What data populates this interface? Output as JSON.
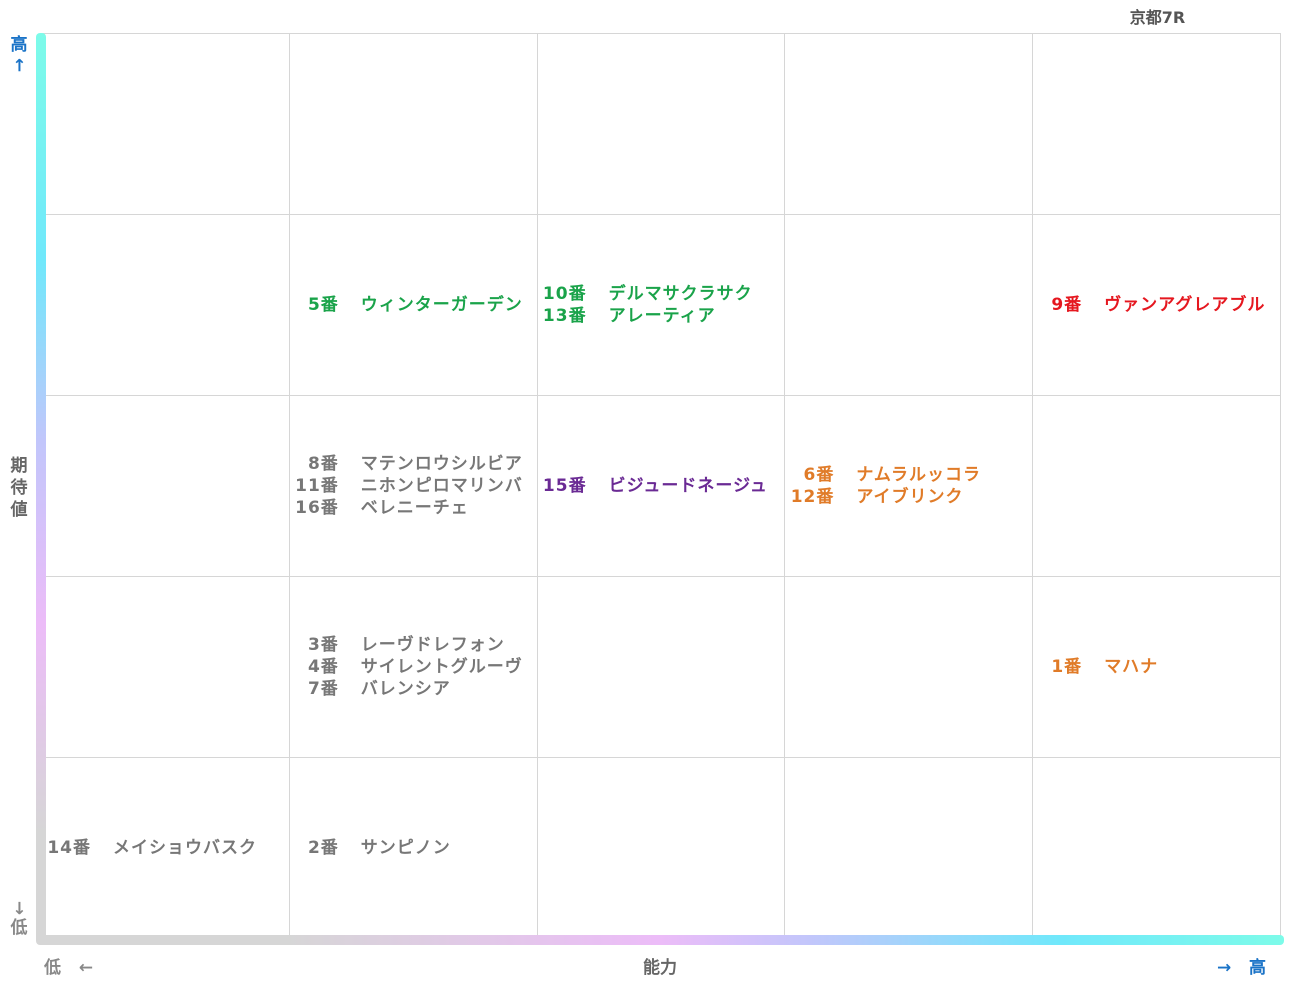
{
  "title": "京都7R",
  "axes": {
    "y_label": "期待値",
    "y_high": "高",
    "y_high_arrow": "←",
    "y_low": "低",
    "y_low_arrow": "→",
    "x_label": "能力",
    "x_low": "低",
    "x_low_arrow": "←",
    "x_high": "高",
    "x_high_arrow": "→"
  },
  "colors": {
    "gray": "#777777",
    "green": "#1aa34a",
    "purple": "#6a2a94",
    "orange": "#e07b28",
    "red": "#e5171f",
    "grid": "#d6d6d6"
  },
  "chart_data": {
    "type": "scatter",
    "x_label": "能力",
    "y_label": "期待値",
    "x_levels": 5,
    "y_levels": 5,
    "horses": [
      {
        "num": "5番",
        "name": "ウィンターガーデン",
        "x": 2,
        "y": 4,
        "color": "green"
      },
      {
        "num": "10番",
        "name": "デルマサクラサク",
        "x": 3,
        "y": 4,
        "color": "green"
      },
      {
        "num": "13番",
        "name": "アレーティア",
        "x": 3,
        "y": 4,
        "color": "green"
      },
      {
        "num": "9番",
        "name": "ヴァンアグレアブル",
        "x": 5,
        "y": 4,
        "color": "red"
      },
      {
        "num": "8番",
        "name": "マテンロウシルビア",
        "x": 2,
        "y": 3,
        "color": "gray"
      },
      {
        "num": "11番",
        "name": "ニホンピロマリンバ",
        "x": 2,
        "y": 3,
        "color": "gray"
      },
      {
        "num": "16番",
        "name": "ベレニーチェ",
        "x": 2,
        "y": 3,
        "color": "gray"
      },
      {
        "num": "15番",
        "name": "ビジュードネージュ",
        "x": 3,
        "y": 3,
        "color": "purple"
      },
      {
        "num": "6番",
        "name": "ナムラルッコラ",
        "x": 4,
        "y": 3,
        "color": "orange"
      },
      {
        "num": "12番",
        "name": "アイブリンク",
        "x": 4,
        "y": 3,
        "color": "orange"
      },
      {
        "num": "3番",
        "name": "レーヴドレフォン",
        "x": 2,
        "y": 2,
        "color": "gray"
      },
      {
        "num": "4番",
        "name": "サイレントグルーヴ",
        "x": 2,
        "y": 2,
        "color": "gray"
      },
      {
        "num": "7番",
        "name": "バレンシア",
        "x": 2,
        "y": 2,
        "color": "gray"
      },
      {
        "num": "1番",
        "name": "マハナ",
        "x": 5,
        "y": 2,
        "color": "orange"
      },
      {
        "num": "14番",
        "name": "メイショウバスク",
        "x": 1,
        "y": 1,
        "color": "gray"
      },
      {
        "num": "2番",
        "name": "サンピノン",
        "x": 2,
        "y": 1,
        "color": "gray"
      }
    ]
  }
}
